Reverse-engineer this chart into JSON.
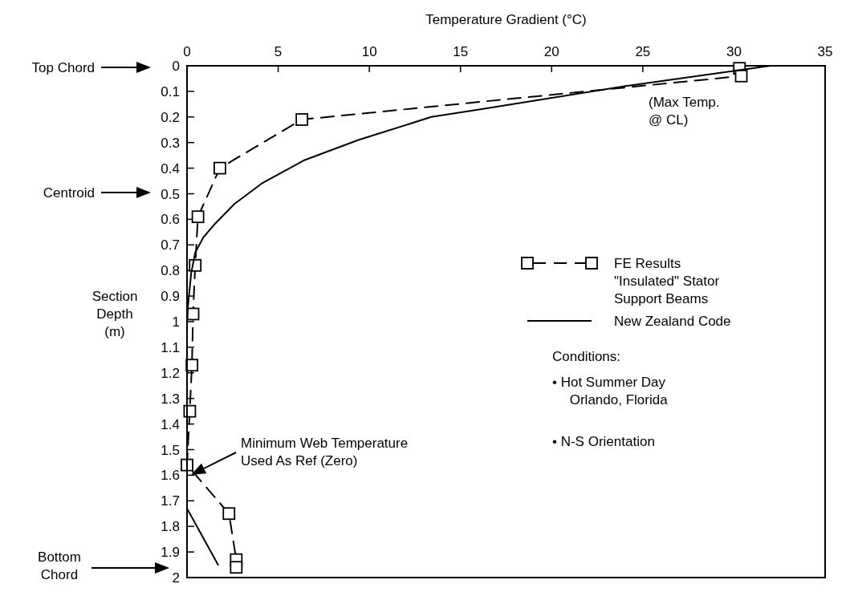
{
  "chart_data": {
    "type": "line",
    "xlabel": "Temperature Gradient (°C)",
    "ylabel": "Section\nDepth\n(m)",
    "xlim": [
      0,
      35
    ],
    "xticks": [
      0,
      5,
      10,
      15,
      20,
      25,
      30,
      35
    ],
    "ylim": [
      2,
      0
    ],
    "yticks": [
      0,
      0.1,
      0.2,
      0.3,
      0.4,
      0.5,
      0.6,
      0.7,
      0.8,
      0.9,
      1,
      1.1,
      1.2,
      1.3,
      1.4,
      1.5,
      1.6,
      1.7,
      1.8,
      1.9,
      2
    ],
    "grid": false,
    "legend": "right",
    "series": [
      {
        "name": "FE Results \"Insulated\" Stator Support Beams",
        "color": "#000000",
        "marker": "square",
        "line_style": "dashed",
        "x": [
          30.3,
          30.4,
          6.3,
          1.8,
          0.6,
          0.45,
          0.33,
          0.27,
          0.15,
          0,
          2.3,
          2.7,
          2.7
        ],
        "values": [
          0.01,
          0.04,
          0.21,
          0.4,
          0.59,
          0.78,
          0.97,
          1.17,
          1.35,
          1.56,
          1.75,
          1.93,
          1.96
        ]
      },
      {
        "name": "New Zealand Code",
        "color": "#000000",
        "marker": "none",
        "line_style": "solid",
        "x": [
          32,
          24,
          16.1,
          13.4,
          9.4,
          6.4,
          4.1,
          2.6,
          1.5,
          0.9,
          0.45,
          0.23,
          0.05,
          0,
          0,
          1.7
        ],
        "values": [
          0,
          0.08,
          0.17,
          0.2,
          0.29,
          0.37,
          0.46,
          0.54,
          0.62,
          0.67,
          0.73,
          0.81,
          0.94,
          1,
          1.73,
          1.95
        ]
      }
    ],
    "annotations": [
      "Top Chord",
      "Centroid",
      "Bottom\nChord",
      "Minimum Web Temperature\nUsed As Ref (Zero)",
      "(Max Temp.\n@ CL)",
      "Conditions:",
      "• Hot Summer Day\nOrlando, Florida",
      "• N-S Orientation"
    ]
  }
}
